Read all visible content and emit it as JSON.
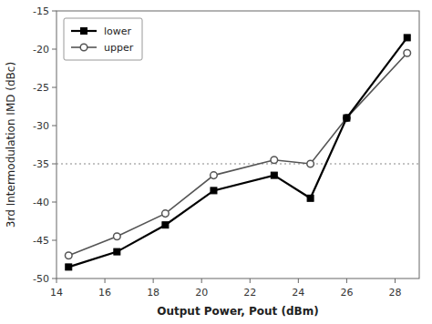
{
  "chart_data": {
    "type": "line",
    "x": [
      14.5,
      16.5,
      18.5,
      20.5,
      23.0,
      24.5,
      26.0,
      28.5
    ],
    "series": [
      {
        "name": "lower",
        "color": "#000000",
        "marker": "square",
        "values": [
          -48.5,
          -46.5,
          -43.0,
          -38.5,
          -36.5,
          -39.5,
          -29.0,
          -18.5
        ]
      },
      {
        "name": "upper",
        "color": "#555555",
        "marker": "circle",
        "values": [
          -47.0,
          -44.5,
          -41.5,
          -36.5,
          -34.5,
          -35.0,
          -29.0,
          -20.5
        ]
      }
    ],
    "hline": {
      "y": -35,
      "color": "#888888",
      "line_style": "dotted"
    },
    "xlim": [
      14,
      29
    ],
    "ylim": [
      -50,
      -15
    ],
    "xticks": [
      14,
      16,
      18,
      20,
      22,
      24,
      26,
      28
    ],
    "yticks": [
      -50,
      -45,
      -40,
      -35,
      -30,
      -25,
      -20,
      -15
    ],
    "xlabel": "Output Power, Pout (dBm)",
    "ylabel": "3rd Intermodulation IMD (dBc)",
    "legend": "upper left",
    "grid": false
  }
}
